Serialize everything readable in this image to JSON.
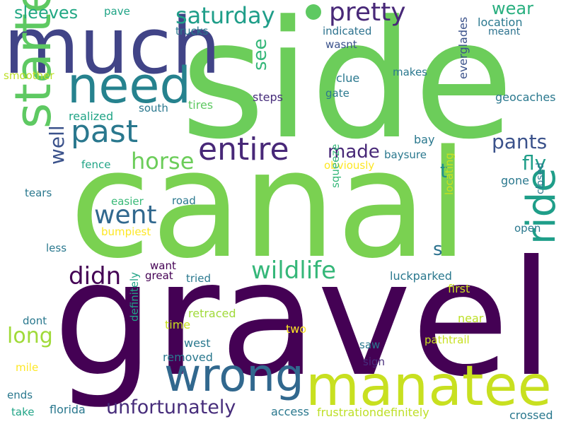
{
  "words": [
    {
      "t": "side",
      "c": "#6ccd5a"
    },
    {
      "t": "canal",
      "c": "#7ad151"
    },
    {
      "t": "gravel",
      "c": "#440154"
    },
    {
      "t": "much",
      "c": "#414487"
    },
    {
      "t": "manatee",
      "c": "#c8e020"
    },
    {
      "t": "started",
      "c": "#5ec962"
    },
    {
      "t": "need",
      "c": "#26828e"
    },
    {
      "t": "wrong",
      "c": "#31688e"
    },
    {
      "t": "ride",
      "c": "#1f9e89"
    },
    {
      "t": "entire",
      "c": "#482878"
    },
    {
      "t": "past",
      "c": "#2a788e"
    },
    {
      "t": "pretty",
      "c": "#482878"
    },
    {
      "t": "saturday",
      "c": "#1f9e89"
    },
    {
      "t": "wildlife",
      "c": "#35b779"
    },
    {
      "t": "unfortunately",
      "c": "#472d7b"
    },
    {
      "t": "didn",
      "c": "#440154"
    },
    {
      "t": "went",
      "c": "#31688e"
    },
    {
      "t": "horse",
      "c": "#6ccd5a"
    },
    {
      "t": "long",
      "c": "#a0da39"
    },
    {
      "t": "sleeves",
      "c": "#22a884"
    },
    {
      "t": "wear",
      "c": "#29af7f"
    },
    {
      "t": "pants",
      "c": "#3b528b"
    },
    {
      "t": "fly",
      "c": "#1f9e89"
    },
    {
      "t": "made",
      "c": "#482878"
    },
    {
      "t": "well",
      "c": "#3b528b"
    },
    {
      "t": "see",
      "c": "#35b779"
    },
    {
      "t": "t",
      "c": "#21918c"
    },
    {
      "t": "s",
      "c": "#2c728e"
    },
    {
      "t": "pave",
      "c": "#20a486"
    },
    {
      "t": "trucks",
      "c": "#2a788e"
    },
    {
      "t": "indicated",
      "c": "#2c728e"
    },
    {
      "t": "location",
      "c": "#2a788e"
    },
    {
      "t": "meant",
      "c": "#2c728e"
    },
    {
      "t": "wasnt",
      "c": "#3b528b"
    },
    {
      "t": "smoother",
      "c": "#bddf26"
    },
    {
      "t": "clue",
      "c": "#2a788e"
    },
    {
      "t": "makes",
      "c": "#2a788e"
    },
    {
      "t": "gate",
      "c": "#2a788e"
    },
    {
      "t": "steps",
      "c": "#472d7b"
    },
    {
      "t": "everglades",
      "c": "#3b528b"
    },
    {
      "t": "geocaches",
      "c": "#2a788e"
    },
    {
      "t": "south",
      "c": "#2a788e"
    },
    {
      "t": "tires",
      "c": "#5ec962"
    },
    {
      "t": "realized",
      "c": "#20a486"
    },
    {
      "t": "bay",
      "c": "#2a788e"
    },
    {
      "t": "baysure",
      "c": "#2a788e"
    },
    {
      "t": "fence",
      "c": "#20a486"
    },
    {
      "t": "obviously",
      "c": "#fde725"
    },
    {
      "t": "tears",
      "c": "#2a788e"
    },
    {
      "t": "easier",
      "c": "#38b977"
    },
    {
      "t": "road",
      "c": "#2a788e"
    },
    {
      "t": "squeeze",
      "c": "#35b779"
    },
    {
      "t": "locating",
      "c": "#c8e020"
    },
    {
      "t": "gone",
      "c": "#2a788e"
    },
    {
      "t": "closed",
      "c": "#2a788e"
    },
    {
      "t": "bumpiest",
      "c": "#fde725"
    },
    {
      "t": "less",
      "c": "#2a788e"
    },
    {
      "t": "open",
      "c": "#2a788e"
    },
    {
      "t": "want",
      "c": "#440154"
    },
    {
      "t": "great",
      "c": "#440154"
    },
    {
      "t": "tried",
      "c": "#2a788e"
    },
    {
      "t": "luckparked",
      "c": "#2a788e"
    },
    {
      "t": "first",
      "c": "#c8e020"
    },
    {
      "t": "retraced",
      "c": "#a0da39"
    },
    {
      "t": "dont",
      "c": "#2a788e"
    },
    {
      "t": "time",
      "c": "#c8e020"
    },
    {
      "t": "near",
      "c": "#bddf26"
    },
    {
      "t": "two",
      "c": "#fde725"
    },
    {
      "t": "pathtrail",
      "c": "#c8e020"
    },
    {
      "t": "west",
      "c": "#2a788e"
    },
    {
      "t": "saw",
      "c": "#2a788e"
    },
    {
      "t": "definitely",
      "c": "#20a486"
    },
    {
      "t": "removed",
      "c": "#2a788e"
    },
    {
      "t": "sign",
      "c": "#472d7b"
    },
    {
      "t": "mile",
      "c": "#fde725"
    },
    {
      "t": "ends",
      "c": "#2a788e"
    },
    {
      "t": "take",
      "c": "#20a486"
    },
    {
      "t": "florida",
      "c": "#2a788e"
    },
    {
      "t": "access",
      "c": "#2a788e"
    },
    {
      "t": "frustrationdefinitely",
      "c": "#bddf26"
    },
    {
      "t": "crossed",
      "c": "#2a788e"
    }
  ],
  "dot_color": "#5ec962"
}
